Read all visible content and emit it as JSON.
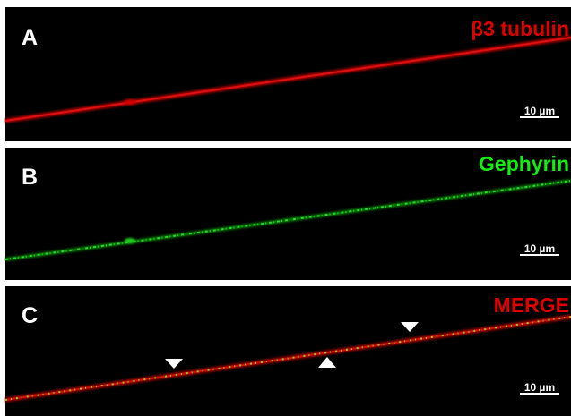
{
  "panels": [
    {
      "label": "A",
      "channel": "β3 tubulin",
      "scale_bar": "10 µm"
    },
    {
      "label": "B",
      "channel": "Gephyrin",
      "scale_bar": "10 µm"
    },
    {
      "label": "C",
      "channel": "MERGE",
      "scale_bar": "10 µm"
    }
  ]
}
